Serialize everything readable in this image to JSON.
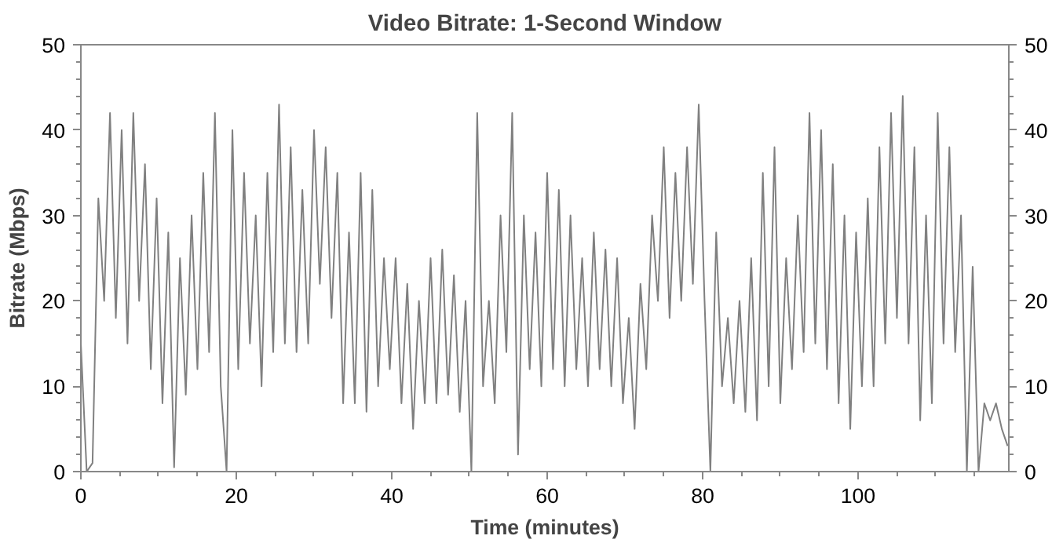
{
  "chart_data": {
    "type": "line",
    "title": "Video Bitrate: 1-Second Window",
    "xlabel": "Time (minutes)",
    "ylabel": "Bitrate (Mbps)",
    "xlim": [
      0,
      119.4
    ],
    "ylim": [
      0,
      50
    ],
    "y2lim": [
      0,
      50
    ],
    "xticks": [
      0,
      20,
      40,
      60,
      80,
      100,
      {
        "value": 5,
        "label": null
      },
      {
        "value": 10,
        "label": null
      },
      {
        "value": 15,
        "label": null
      },
      {
        "value": 25,
        "label": null
      },
      {
        "value": 30,
        "label": null
      },
      {
        "value": 35,
        "label": null
      },
      {
        "value": 45,
        "label": null
      },
      {
        "value": 50,
        "label": null
      },
      {
        "value": 55,
        "label": null
      },
      {
        "value": 65,
        "label": null
      },
      {
        "value": 70,
        "label": null
      },
      {
        "value": 75,
        "label": null
      },
      {
        "value": 85,
        "label": null
      },
      {
        "value": 90,
        "label": null
      },
      {
        "value": 95,
        "label": null
      },
      {
        "value": 105,
        "label": null
      },
      {
        "value": 110,
        "label": null
      },
      {
        "value": 115,
        "label": null
      }
    ],
    "yticks": [
      0,
      10,
      20,
      30,
      40,
      50,
      {
        "value": 2,
        "label": null
      },
      {
        "value": 4,
        "label": null
      },
      {
        "value": 6,
        "label": null
      },
      {
        "value": 8,
        "label": null
      },
      {
        "value": 12,
        "label": null
      },
      {
        "value": 14,
        "label": null
      },
      {
        "value": 16,
        "label": null
      },
      {
        "value": 18,
        "label": null
      },
      {
        "value": 22,
        "label": null
      },
      {
        "value": 24,
        "label": null
      },
      {
        "value": 26,
        "label": null
      },
      {
        "value": 28,
        "label": null
      },
      {
        "value": 32,
        "label": null
      },
      {
        "value": 34,
        "label": null
      },
      {
        "value": 36,
        "label": null
      },
      {
        "value": 38,
        "label": null
      },
      {
        "value": 42,
        "label": null
      },
      {
        "value": 44,
        "label": null
      },
      {
        "value": 46,
        "label": null
      },
      {
        "value": 48,
        "label": null
      }
    ],
    "y2ticks": [
      0,
      10,
      20,
      30,
      40,
      50,
      {
        "value": 2,
        "label": null
      },
      {
        "value": 4,
        "label": null
      },
      {
        "value": 6,
        "label": null
      },
      {
        "value": 8,
        "label": null
      },
      {
        "value": 12,
        "label": null
      },
      {
        "value": 14,
        "label": null
      },
      {
        "value": 16,
        "label": null
      },
      {
        "value": 18,
        "label": null
      },
      {
        "value": 22,
        "label": null
      },
      {
        "value": 24,
        "label": null
      },
      {
        "value": 26,
        "label": null
      },
      {
        "value": 28,
        "label": null
      },
      {
        "value": 32,
        "label": null
      },
      {
        "value": 34,
        "label": null
      },
      {
        "value": 36,
        "label": null
      },
      {
        "value": 38,
        "label": null
      },
      {
        "value": 42,
        "label": null
      },
      {
        "value": 44,
        "label": null
      },
      {
        "value": 46,
        "label": null
      },
      {
        "value": 48,
        "label": null
      }
    ],
    "grid": false,
    "series": [
      {
        "color": "#808080",
        "x": [
          0,
          0.75,
          1.5,
          2.25,
          3,
          3.75,
          4.5,
          5.25,
          6,
          6.75,
          7.5,
          8.25,
          9,
          9.75,
          10.5,
          11.25,
          12,
          12.75,
          13.5,
          14.25,
          15,
          15.75,
          16.5,
          17.25,
          18,
          18.75,
          19.5,
          20.25,
          21,
          21.75,
          22.5,
          23.25,
          24,
          24.75,
          25.5,
          26.25,
          27,
          27.75,
          28.5,
          29.25,
          30,
          30.75,
          31.5,
          32.25,
          33,
          33.75,
          34.5,
          35.25,
          36,
          36.75,
          37.5,
          38.25,
          39,
          39.75,
          40.5,
          41.25,
          42,
          42.75,
          43.5,
          44.25,
          45,
          45.75,
          46.5,
          47.25,
          48,
          48.75,
          49.5,
          50.25,
          51,
          51.75,
          52.5,
          53.25,
          54,
          54.75,
          55.5,
          56.25,
          57,
          57.75,
          58.5,
          59.25,
          60,
          60.75,
          61.5,
          62.25,
          63,
          63.75,
          64.5,
          65.25,
          66,
          66.75,
          67.5,
          68.25,
          69,
          69.75,
          70.5,
          71.25,
          72,
          72.75,
          73.5,
          74.25,
          75,
          75.75,
          76.5,
          77.25,
          78,
          78.75,
          79.5,
          80.25,
          81,
          81.75,
          82.5,
          83.25,
          84,
          84.75,
          85.5,
          86.25,
          87,
          87.75,
          88.5,
          89.25,
          90,
          90.75,
          91.5,
          92.25,
          93,
          93.75,
          94.5,
          95.25,
          96,
          96.75,
          97.5,
          98.25,
          99,
          99.75,
          100.5,
          101.25,
          102,
          102.75,
          103.5,
          104.25,
          105,
          105.75,
          106.5,
          107.25,
          108,
          108.75,
          109.5,
          110.25,
          111,
          111.75,
          112.5,
          113.25,
          114,
          114.75,
          115.5,
          116.25,
          117,
          117.75,
          118.5,
          119.25
        ],
        "values": [
          15,
          0,
          1,
          32,
          20,
          42,
          18,
          40,
          15,
          42,
          20,
          36,
          12,
          32,
          8,
          28,
          0.5,
          25,
          9,
          30,
          12,
          35,
          14,
          42,
          10,
          0,
          40,
          12,
          35,
          15,
          30,
          10,
          35,
          14,
          43,
          15,
          38,
          14,
          33,
          15,
          40,
          22,
          38,
          18,
          35,
          8,
          28,
          8,
          35,
          7,
          33,
          10,
          25,
          12,
          25,
          8,
          22,
          5,
          20,
          8,
          25,
          8,
          26,
          9,
          23,
          7,
          20,
          0,
          42,
          10,
          20,
          8,
          30,
          14,
          42,
          2,
          30,
          12,
          28,
          10,
          35,
          12,
          33,
          10,
          30,
          12,
          25,
          10,
          28,
          12,
          26,
          10,
          25,
          8,
          18,
          5,
          22,
          12,
          30,
          20,
          38,
          18,
          35,
          20,
          38,
          22,
          43,
          20,
          0,
          28,
          10,
          18,
          8,
          20,
          7,
          25,
          6,
          35,
          10,
          38,
          8,
          25,
          12,
          30,
          14,
          42,
          15,
          40,
          12,
          36,
          8,
          30,
          5,
          28,
          10,
          32,
          10,
          38,
          15,
          42,
          18,
          44,
          15,
          38,
          6,
          30,
          8,
          42,
          15,
          38,
          14,
          30,
          0,
          24,
          0,
          8,
          6,
          8,
          5,
          3
        ]
      }
    ]
  }
}
